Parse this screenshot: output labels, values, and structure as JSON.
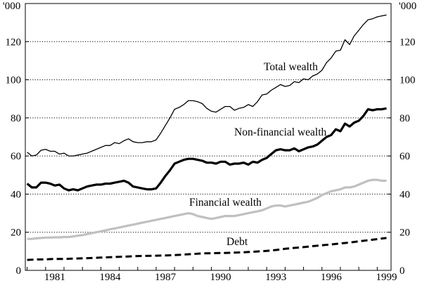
{
  "chart_data": {
    "type": "line",
    "title": "",
    "xlabel": "",
    "ylabel": "'000",
    "y_unit_label_left": "'000",
    "y_unit_label_right": "'000",
    "xlim": [
      1979.9,
      1999.75
    ],
    "ylim": [
      0,
      140
    ],
    "x_ticks": [
      1981,
      1984,
      1987,
      1990,
      1993,
      1996,
      1999
    ],
    "y_ticks": [
      0,
      20,
      40,
      60,
      80,
      100,
      120
    ],
    "grid": "horizontal dotted",
    "series": [
      {
        "name": "Total wealth",
        "style": "thin",
        "color": "#000000",
        "x": [
          1980.0,
          1980.25,
          1980.5,
          1980.75,
          1981.0,
          1981.25,
          1981.5,
          1981.75,
          1982.0,
          1982.25,
          1982.5,
          1982.75,
          1983.0,
          1983.25,
          1983.5,
          1983.75,
          1984.0,
          1984.25,
          1984.5,
          1984.75,
          1985.0,
          1985.25,
          1985.5,
          1985.75,
          1986.0,
          1986.25,
          1986.5,
          1986.75,
          1987.0,
          1987.25,
          1987.5,
          1987.75,
          1988.0,
          1988.25,
          1988.5,
          1988.75,
          1989.0,
          1989.25,
          1989.5,
          1989.75,
          1990.0,
          1990.25,
          1990.5,
          1990.75,
          1991.0,
          1991.25,
          1991.5,
          1991.75,
          1992.0,
          1992.25,
          1992.5,
          1992.75,
          1993.0,
          1993.25,
          1993.5,
          1993.75,
          1994.0,
          1994.25,
          1994.5,
          1994.75,
          1995.0,
          1995.25,
          1995.5,
          1995.75,
          1996.0,
          1996.25,
          1996.5,
          1996.75,
          1997.0,
          1997.25,
          1997.5,
          1997.75,
          1998.0,
          1998.25,
          1998.5,
          1998.75,
          1999.0,
          1999.25,
          1999.5
        ],
        "values": [
          62,
          60,
          60.5,
          63,
          63.5,
          62.5,
          62.5,
          61,
          61.5,
          60,
          60,
          60.5,
          61,
          61.5,
          62.5,
          63.5,
          64.5,
          65.5,
          65.5,
          67,
          66.5,
          68,
          69,
          67.5,
          67,
          67,
          67.5,
          67.5,
          68.5,
          72,
          76,
          80,
          84.5,
          85.5,
          87,
          89,
          89,
          88.5,
          87.5,
          85,
          83.5,
          83,
          84.5,
          86,
          86,
          84,
          85,
          85.5,
          87,
          86,
          88.5,
          92,
          92.5,
          94.5,
          96,
          97.5,
          96.5,
          97,
          99,
          98.5,
          100.5,
          100,
          102,
          103,
          105,
          109,
          111.5,
          115,
          115.5,
          121,
          118.5,
          123,
          126,
          129,
          131.5,
          132,
          133,
          133.5,
          134
        ]
      },
      {
        "name": "Non-financial wealth",
        "style": "thick",
        "color": "#000000",
        "x": [
          1980.0,
          1980.25,
          1980.5,
          1980.75,
          1981.0,
          1981.25,
          1981.5,
          1981.75,
          1982.0,
          1982.25,
          1982.5,
          1982.75,
          1983.0,
          1983.25,
          1983.5,
          1983.75,
          1984.0,
          1984.25,
          1984.5,
          1984.75,
          1985.0,
          1985.25,
          1985.5,
          1985.75,
          1986.0,
          1986.25,
          1986.5,
          1986.75,
          1987.0,
          1987.25,
          1987.5,
          1987.75,
          1988.0,
          1988.25,
          1988.5,
          1988.75,
          1989.0,
          1989.25,
          1989.5,
          1989.75,
          1990.0,
          1990.25,
          1990.5,
          1990.75,
          1991.0,
          1991.25,
          1991.5,
          1991.75,
          1992.0,
          1992.25,
          1992.5,
          1992.75,
          1993.0,
          1993.25,
          1993.5,
          1993.75,
          1994.0,
          1994.25,
          1994.5,
          1994.75,
          1995.0,
          1995.25,
          1995.5,
          1995.75,
          1996.0,
          1996.25,
          1996.5,
          1996.75,
          1997.0,
          1997.25,
          1997.5,
          1997.75,
          1998.0,
          1998.25,
          1998.5,
          1998.75,
          1999.0,
          1999.25,
          1999.5
        ],
        "values": [
          45.5,
          43.5,
          43.5,
          46,
          46,
          45.5,
          44.5,
          45,
          43,
          42,
          42.5,
          42,
          43,
          44,
          44.5,
          45,
          45,
          45.5,
          45.5,
          46,
          46.5,
          47,
          46,
          44,
          43.5,
          43,
          42.5,
          42.5,
          43,
          46,
          49.5,
          52.5,
          56,
          57,
          58,
          58.5,
          58.5,
          58,
          57.5,
          56.5,
          56.5,
          56,
          57,
          57,
          55.5,
          56,
          56,
          56.5,
          55.5,
          57,
          56.5,
          58,
          59,
          61,
          63,
          63.5,
          63,
          63,
          64,
          62.5,
          63.5,
          64.5,
          65,
          66,
          68,
          70,
          71,
          74,
          73,
          77,
          75.5,
          77.5,
          78.5,
          81,
          84.5,
          84,
          84.5,
          84.5,
          85
        ]
      },
      {
        "name": "Financial wealth",
        "style": "grey",
        "color": "#c0c0c0",
        "x": [
          1980.0,
          1980.25,
          1980.5,
          1980.75,
          1981.0,
          1981.25,
          1981.5,
          1981.75,
          1982.0,
          1982.25,
          1982.5,
          1982.75,
          1983.0,
          1983.25,
          1983.5,
          1983.75,
          1984.0,
          1984.25,
          1984.5,
          1984.75,
          1985.0,
          1985.25,
          1985.5,
          1985.75,
          1986.0,
          1986.25,
          1986.5,
          1986.75,
          1987.0,
          1987.25,
          1987.5,
          1987.75,
          1988.0,
          1988.25,
          1988.5,
          1988.75,
          1989.0,
          1989.25,
          1989.5,
          1989.75,
          1990.0,
          1990.25,
          1990.5,
          1990.75,
          1991.0,
          1991.25,
          1991.5,
          1991.75,
          1992.0,
          1992.25,
          1992.5,
          1992.75,
          1993.0,
          1993.25,
          1993.5,
          1993.75,
          1994.0,
          1994.25,
          1994.5,
          1994.75,
          1995.0,
          1995.25,
          1995.5,
          1995.75,
          1996.0,
          1996.25,
          1996.5,
          1996.75,
          1997.0,
          1997.25,
          1997.5,
          1997.75,
          1998.0,
          1998.25,
          1998.5,
          1998.75,
          1999.0,
          1999.25,
          1999.5
        ],
        "values": [
          16.5,
          16.5,
          16.8,
          17,
          17.2,
          17.2,
          17.3,
          17.3,
          17.5,
          17.5,
          17.8,
          18.2,
          18.5,
          19,
          19.5,
          20,
          20.5,
          21,
          21.5,
          22,
          22.5,
          23,
          23.5,
          24,
          24.5,
          25,
          25.5,
          26,
          26.5,
          27,
          27.5,
          28,
          28.5,
          29,
          29.5,
          30,
          29.5,
          28.5,
          28,
          27.5,
          27,
          27.5,
          28,
          28.5,
          28.5,
          28.5,
          29,
          29.5,
          30,
          30.5,
          31,
          31.5,
          32.5,
          33.5,
          34,
          34,
          33.5,
          34,
          34.5,
          35,
          35.5,
          36,
          37,
          38,
          39.5,
          40.5,
          41.5,
          42,
          42.5,
          43.5,
          43.5,
          44,
          45,
          46,
          47,
          47.5,
          47.5,
          47,
          47
        ]
      },
      {
        "name": "Debt",
        "style": "dashed",
        "color": "#000000",
        "x": [
          1980.0,
          1980.5,
          1981.0,
          1981.5,
          1982.0,
          1982.5,
          1983.0,
          1983.5,
          1984.0,
          1984.5,
          1985.0,
          1985.5,
          1986.0,
          1986.5,
          1987.0,
          1987.5,
          1988.0,
          1988.5,
          1989.0,
          1989.5,
          1990.0,
          1990.5,
          1991.0,
          1991.5,
          1992.0,
          1992.5,
          1993.0,
          1993.5,
          1994.0,
          1994.5,
          1995.0,
          1995.5,
          1996.0,
          1996.5,
          1997.0,
          1997.5,
          1998.0,
          1998.5,
          1999.0,
          1999.5
        ],
        "values": [
          5.5,
          5.7,
          5.8,
          6.0,
          6.0,
          6.2,
          6.3,
          6.5,
          6.7,
          6.9,
          7.1,
          7.3,
          7.5,
          7.6,
          7.7,
          7.8,
          8.0,
          8.3,
          8.6,
          8.9,
          9.0,
          9.1,
          9.2,
          9.4,
          9.6,
          9.9,
          10.2,
          10.7,
          11.3,
          11.8,
          12.2,
          12.7,
          13.2,
          13.6,
          14.1,
          14.6,
          15.2,
          15.8,
          16.4,
          17.0
        ]
      }
    ],
    "annotations": [
      {
        "text": "Total wealth",
        "series": "Total wealth"
      },
      {
        "text": "Non-financial wealth",
        "series": "Non-financial wealth"
      },
      {
        "text": "Financial wealth",
        "series": "Financial wealth"
      },
      {
        "text": "Debt",
        "series": "Debt"
      }
    ]
  }
}
